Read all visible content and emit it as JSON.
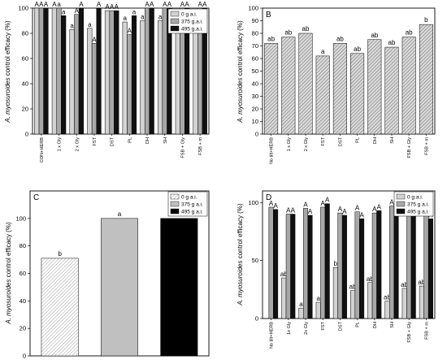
{
  "chart_data": [
    {
      "type": "bar",
      "panel_label": "A",
      "ylabel": "A. myosuroides control efficacy (%)",
      "ylim": [
        0,
        100
      ],
      "yticks": [
        0,
        20,
        40,
        60,
        80,
        100
      ],
      "categories": [
        "CON+HERB",
        "1 x Gly",
        "2 x Gly",
        "FST",
        "DST",
        "PL",
        "DH",
        "SH",
        "FSB + Gly",
        "FSB + m"
      ],
      "legend": {
        "position": "top-right",
        "entries": [
          "0 g.a.i.",
          "375 g.a.i.",
          "495 g.a.i."
        ]
      },
      "series": [
        {
          "name": "0 g.a.i.",
          "fill": "#d3d3d3",
          "values": [
            100,
            100,
            83,
            84,
            98,
            89,
            90,
            90,
            90,
            90
          ],
          "letters": [
            "A",
            "A",
            "a",
            "a",
            "A",
            "a",
            "a",
            "a",
            "a",
            "a"
          ]
        },
        {
          "name": "375 g.a.i.",
          "fill": "#a8a8a8",
          "values": [
            100,
            100,
            95,
            72,
            98,
            79,
            100,
            100,
            100,
            100
          ],
          "letters": [
            "A",
            "a",
            "A",
            "A",
            "A",
            "A",
            "A",
            "A",
            "A",
            "A"
          ]
        },
        {
          "name": "495 g.a.i.",
          "fill": "#111111",
          "values": [
            100,
            94,
            100,
            100,
            98,
            94,
            100,
            100,
            100,
            100
          ],
          "letters": [
            "A",
            "a",
            "A",
            "A",
            "A",
            "a",
            "A",
            "A",
            "A",
            "A"
          ]
        }
      ]
    },
    {
      "type": "bar",
      "panel_label": "B",
      "ylabel": "A. myosuroides control efficacy (%)",
      "ylim": [
        0,
        100
      ],
      "yticks": [
        0,
        10,
        20,
        30,
        40,
        50,
        60,
        70,
        80,
        90,
        100
      ],
      "categories": [
        "No tilt+HERB",
        "1 x Gly",
        "2 x Gly",
        "FST",
        "DST",
        "PL",
        "DH",
        "SH",
        "FSB + Gly",
        "FSB + m"
      ],
      "series": [
        {
          "name": "",
          "fill": "#c8c8c8",
          "values": [
            72,
            77,
            80,
            62,
            72,
            64,
            75,
            69,
            77,
            87
          ],
          "letters": [
            "ab",
            "ab",
            "ab",
            "a",
            "ab",
            "ab",
            "ab",
            "ab",
            "ab",
            "b"
          ]
        }
      ]
    },
    {
      "type": "bar",
      "panel_label": "C",
      "ylabel": "A. myosuroides control efficacy (%)",
      "ylim": [
        0,
        120
      ],
      "yticks": [
        0,
        20,
        40,
        60,
        80,
        100
      ],
      "categories": [
        "0 g a.i.",
        "375 g a.i.",
        "495 g a.i."
      ],
      "legend": {
        "position": "top-right",
        "entries": [
          "0 g a.i.",
          "375 g a.i.",
          "495 g a.i."
        ]
      },
      "series": [
        {
          "name": "treatment",
          "fills": [
            "#e6e6e6",
            "#c0c0c0",
            "#000000"
          ],
          "values": [
            71,
            100,
            100
          ],
          "letters": [
            "b",
            "a",
            "a"
          ]
        }
      ]
    },
    {
      "type": "bar",
      "panel_label": "D",
      "ylabel": "A. myosuroides control efficacy (%)",
      "ylim": [
        0,
        110
      ],
      "yticks": [
        0,
        50,
        100
      ],
      "categories": [
        "No tilt+HERB",
        "1x Gly",
        "2x Gly",
        "FST",
        "DST",
        "PL",
        "DH",
        "SH",
        "FSB + Gly",
        "FSB + m"
      ],
      "legend": {
        "position": "top-right",
        "entries": [
          "0 g a.i.",
          "375 g a.i.",
          "495 g a.i."
        ]
      },
      "series": [
        {
          "name": "0 g a.i.",
          "fill": "#d3d3d3",
          "values": [
            0,
            35,
            9,
            14,
            44,
            24,
            31,
            15,
            26,
            28
          ],
          "letters": [
            "",
            "ab",
            "a",
            "a",
            "b",
            "ab",
            "ab",
            "ab",
            "ab",
            "ab"
          ]
        },
        {
          "name": "375 g a.i.",
          "fill": "#a8a8a8",
          "values": [
            96,
            90,
            95,
            96,
            91,
            92,
            91,
            97,
            99,
            98
          ],
          "letters": [
            "A",
            "A",
            "A",
            "A",
            "A",
            "A",
            "A",
            "A",
            "A",
            "A"
          ]
        },
        {
          "name": "495 g a.i.",
          "fill": "#111111",
          "values": [
            94,
            90,
            89,
            99,
            89,
            86,
            93,
            99,
            97,
            86
          ],
          "letters": [
            "A",
            "A",
            "A",
            "A",
            "A",
            "A",
            "A",
            "A",
            "A",
            "A"
          ]
        }
      ]
    }
  ]
}
